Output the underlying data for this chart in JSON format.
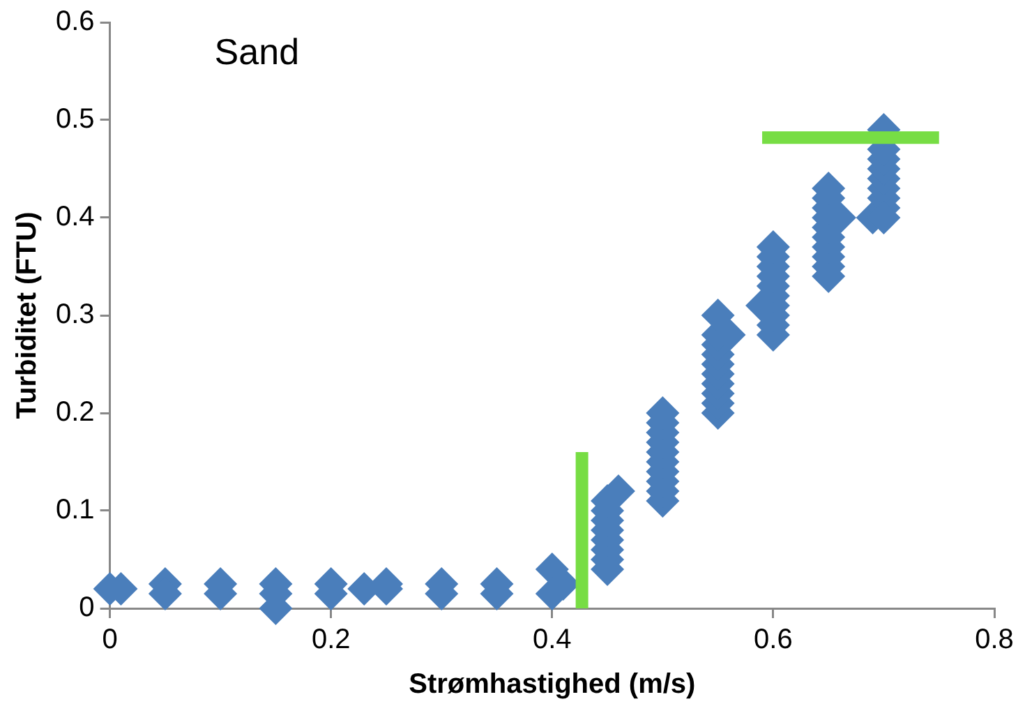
{
  "chart_data": {
    "type": "scatter",
    "xlabel": "Strømhastighed (m/s)",
    "ylabel": "Turbiditet (FTU)",
    "annotations": [
      "Sand"
    ],
    "xlim": [
      0,
      0.8
    ],
    "xticks": [
      0,
      0.2,
      0.4,
      0.6,
      0.8
    ],
    "ylim": [
      0,
      0.6
    ],
    "yticks": [
      0,
      0.1,
      0.2,
      0.3,
      0.4,
      0.5,
      0.6
    ],
    "grid": false,
    "legend": false,
    "marker": "diamond",
    "series": [
      {
        "color": "#4a7ebb",
        "x": [
          0,
          0.01,
          0.05,
          0.05,
          0.1,
          0.1,
          0.15,
          0.15,
          0.15,
          0.2,
          0.2,
          0.23,
          0.25,
          0.25,
          0.3,
          0.3,
          0.35,
          0.35,
          0.4,
          0.4,
          0.41,
          0.45,
          0.45,
          0.45,
          0.45,
          0.45,
          0.45,
          0.45,
          0.45,
          0.46,
          0.5,
          0.5,
          0.5,
          0.5,
          0.5,
          0.5,
          0.5,
          0.5,
          0.5,
          0.5,
          0.55,
          0.55,
          0.55,
          0.55,
          0.55,
          0.55,
          0.55,
          0.55,
          0.55,
          0.55,
          0.56,
          0.59,
          0.6,
          0.6,
          0.6,
          0.6,
          0.6,
          0.6,
          0.6,
          0.6,
          0.6,
          0.6,
          0.65,
          0.65,
          0.65,
          0.65,
          0.65,
          0.65,
          0.65,
          0.65,
          0.65,
          0.65,
          0.66,
          0.69,
          0.7,
          0.7,
          0.7,
          0.7,
          0.7,
          0.7,
          0.7,
          0.7,
          0.7
        ],
        "values": [
          0.02,
          0.02,
          0.025,
          0.015,
          0.025,
          0.015,
          0.025,
          0.015,
          0,
          0.025,
          0.015,
          0.02,
          0.02,
          0.025,
          0.025,
          0.015,
          0.025,
          0.015,
          0.04,
          0.015,
          0.025,
          0.04,
          0.05,
          0.06,
          0.07,
          0.08,
          0.09,
          0.1,
          0.11,
          0.12,
          0.11,
          0.12,
          0.13,
          0.14,
          0.15,
          0.16,
          0.17,
          0.18,
          0.19,
          0.2,
          0.2,
          0.21,
          0.22,
          0.23,
          0.24,
          0.25,
          0.26,
          0.27,
          0.28,
          0.3,
          0.28,
          0.31,
          0.28,
          0.29,
          0.3,
          0.31,
          0.32,
          0.33,
          0.34,
          0.35,
          0.36,
          0.37,
          0.34,
          0.35,
          0.36,
          0.37,
          0.38,
          0.39,
          0.4,
          0.41,
          0.42,
          0.43,
          0.4,
          0.4,
          0.41,
          0.42,
          0.43,
          0.44,
          0.45,
          0.46,
          0.47,
          0.49,
          0.4
        ]
      },
      {
        "type": "line",
        "marker": "none",
        "color": "#77dd44",
        "x": [
          0.427,
          0.427
        ],
        "values": [
          0,
          0.16
        ]
      },
      {
        "type": "line",
        "marker": "none",
        "color": "#77dd44",
        "x": [
          0.59,
          0.75
        ],
        "values": [
          0.482,
          0.482
        ]
      }
    ]
  }
}
